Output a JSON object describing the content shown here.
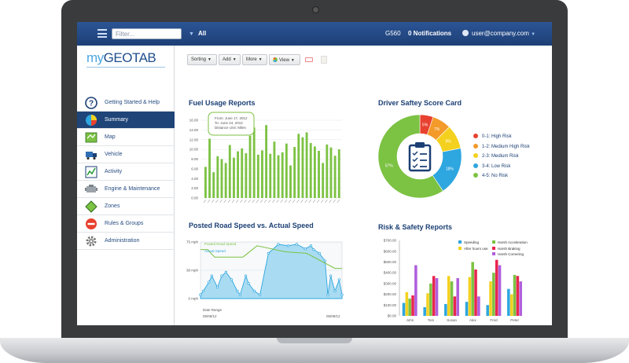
{
  "topbar": {
    "filter_placeholder": "Filter...",
    "scope": "All",
    "device": "G560",
    "notifications": "0 Notifications",
    "user": "user@company.com"
  },
  "sidebar": {
    "logo_prefix": "my",
    "logo_main": "GEOTAB",
    "items": [
      {
        "label": "Getting Started & Help",
        "icon": "help-icon"
      },
      {
        "label": "Summary",
        "icon": "pie-chart-icon",
        "active": true
      },
      {
        "label": "Map",
        "icon": "map-icon"
      },
      {
        "label": "Vehicle",
        "icon": "truck-icon"
      },
      {
        "label": "Activity",
        "icon": "activity-chart-icon"
      },
      {
        "label": "Engine & Maintenance",
        "icon": "engine-icon"
      },
      {
        "label": "Zones",
        "icon": "zone-icon"
      },
      {
        "label": "Rules & Groups",
        "icon": "no-entry-icon"
      },
      {
        "label": "Administration",
        "icon": "gear-icon"
      }
    ]
  },
  "toolbar": {
    "sorting": "Sorting",
    "add": "Add",
    "more": "More",
    "view": "View"
  },
  "fuel_panel": {
    "title": "Fuel Usage Reports",
    "tooltip_from": "From: June 17, 2012",
    "tooltip_to": "To: June 24, 2012",
    "tooltip_unit": "Distance Unit: Miles"
  },
  "speed_panel": {
    "title": "Posted Road Speed vs. Actual Speed",
    "legend_posted": "Posted Road Speed",
    "legend_actual": "Actual Speed",
    "x_label": "Date Range",
    "x_start": "05/06/12",
    "x_end": "05/08/12"
  },
  "safety_panel": {
    "title": "Driver Saftey Score Card",
    "legend": [
      {
        "label": "0-1: High Risk",
        "color": "#e8412f"
      },
      {
        "label": "1-2: Medium High Risk",
        "color": "#f39a2a"
      },
      {
        "label": "2-3: Medium Risk",
        "color": "#f4d11e"
      },
      {
        "label": "3-4: Low Risk",
        "color": "#2ea6df"
      },
      {
        "label": "4-5: No Risk",
        "color": "#7cc243"
      }
    ]
  },
  "risk_panel": {
    "title": "Risk & Safety Reports",
    "legend": [
      {
        "label": "Speeding",
        "color": "#2ea6df"
      },
      {
        "label": "After hours use",
        "color": "#f4d11e"
      },
      {
        "label": "Harsh Acceleration",
        "color": "#7cc243"
      },
      {
        "label": "Harsh Braking",
        "color": "#e8264f"
      },
      {
        "label": "Harsh Cornering",
        "color": "#b05fdc"
      }
    ]
  },
  "chart_data": [
    {
      "type": "bar",
      "title": "Fuel Usage Reports",
      "ylim": [
        0,
        16
      ],
      "yticks": [
        "16.00",
        "14.00",
        "12.00",
        "10.00",
        "8.00",
        "6.00",
        "4.00",
        "2.00",
        "0.00"
      ],
      "values": [
        6.4,
        12.2,
        5.3,
        8.6,
        8.0,
        7.2,
        10.9,
        8.3,
        9.6,
        10.2,
        9.2,
        12.8,
        14.5,
        8.9,
        9.8,
        15.0,
        9.1,
        11.6,
        8.8,
        9.4,
        11.2,
        6.7,
        10.5,
        13.2,
        12.5,
        13.5,
        11.3,
        10.6,
        9.7,
        7.2,
        11.0,
        10.4,
        8.7,
        10.0
      ],
      "color": "#7cc243"
    },
    {
      "type": "area",
      "title": "Posted Road Speed vs. Actual Speed",
      "yticks": [
        "75 mph",
        "38 mph",
        "0 mph"
      ],
      "ylim": [
        0,
        75
      ],
      "series": [
        {
          "name": "Posted Road Speed",
          "x": [
            0,
            5,
            10,
            30,
            40,
            60,
            75,
            95,
            100
          ],
          "values": [
            65,
            65,
            55,
            55,
            70,
            62,
            60,
            40,
            40
          ],
          "color": "#7cc243"
        },
        {
          "name": "Actual Speed",
          "x": [
            0,
            2,
            6,
            8,
            12,
            15,
            18,
            22,
            26,
            28,
            32,
            34,
            38,
            42,
            48,
            55,
            62,
            68,
            74,
            78,
            80,
            84,
            88,
            90,
            92,
            95,
            98,
            100
          ],
          "values": [
            5,
            10,
            22,
            30,
            15,
            30,
            35,
            25,
            10,
            5,
            30,
            20,
            10,
            5,
            60,
            72,
            70,
            72,
            66,
            70,
            65,
            60,
            50,
            5,
            30,
            10,
            25,
            5
          ],
          "color": "#2ea6df"
        }
      ]
    },
    {
      "type": "pie",
      "title": "Driver Saftey Score Card",
      "labels": [
        "0-1: High Risk",
        "1-2: Medium High Risk",
        "2-3: Medium Risk",
        "3-4: Low Risk",
        "4-5: No Risk"
      ],
      "values": [
        5,
        7,
        9,
        18,
        57
      ],
      "value_labels": [
        "5%",
        "7%",
        "9%",
        "18%",
        "57%"
      ],
      "colors": [
        "#e8412f",
        "#f39a2a",
        "#f4d11e",
        "#2ea6df",
        "#7cc243"
      ]
    },
    {
      "type": "bar",
      "title": "Risk & Safety Reports",
      "ylim": [
        0,
        700
      ],
      "yticks": [
        "$700.00",
        "$600.00",
        "$500.00",
        "$400.00",
        "$300.00",
        "$200.00",
        "$100.00",
        "$0.00"
      ],
      "categories": [
        "John",
        "Tom",
        "Susan",
        "Alex",
        "Fred",
        "Peter"
      ],
      "series": [
        {
          "name": "Speeding",
          "values": [
            120,
            80,
            110,
            130,
            100,
            250
          ],
          "color": "#2ea6df"
        },
        {
          "name": "After hours use",
          "values": [
            220,
            210,
            370,
            360,
            320,
            200
          ],
          "color": "#f4d11e"
        },
        {
          "name": "Harsh Acceleration",
          "values": [
            160,
            300,
            320,
            500,
            400,
            380
          ],
          "color": "#7cc243"
        },
        {
          "name": "Harsh Braking",
          "values": [
            190,
            370,
            180,
            430,
            520,
            370
          ],
          "color": "#e8264f"
        },
        {
          "name": "Harsh Cornering",
          "values": [
            470,
            350,
            350,
            180,
            470,
            320
          ],
          "color": "#b05fdc"
        }
      ]
    }
  ]
}
